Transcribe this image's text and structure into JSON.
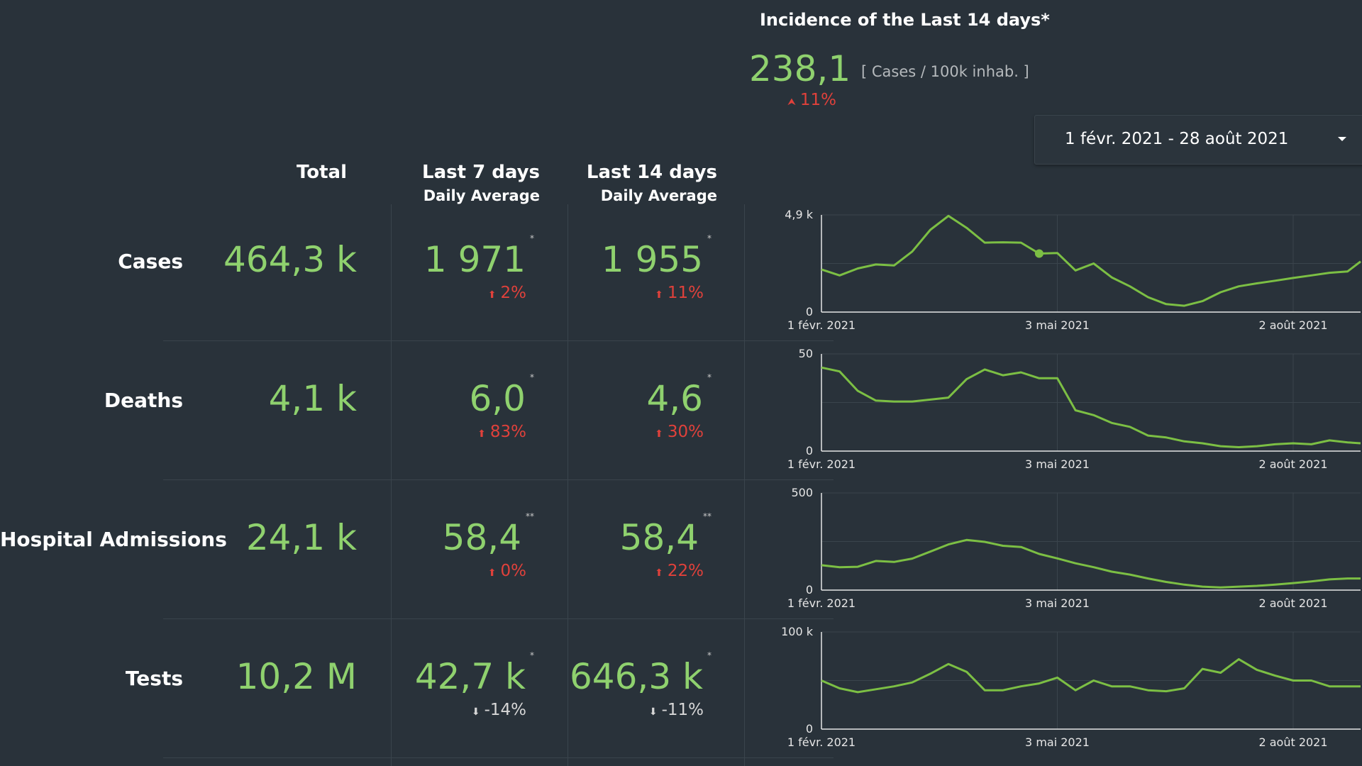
{
  "incidence": {
    "title": "Incidence of the Last 14 days*",
    "value": "238,1",
    "unit": "[ Cases / 100k inhab. ]",
    "change": "11%",
    "change_dir": "up"
  },
  "date_range": {
    "label": "1 févr. 2021 - 28 août 2021"
  },
  "columns": {
    "total": "Total",
    "last7_line1": "Last 7 days",
    "last7_line2": "Daily Average",
    "last14_line1": "Last 14 days",
    "last14_line2": "Daily Average"
  },
  "rows": [
    {
      "label": "Cases",
      "total": "464,3 k",
      "last7": "1 971",
      "last7_mark": "*",
      "last7_change": "2%",
      "last7_dir": "up",
      "last14": "1 955",
      "last14_mark": "*",
      "last14_change": "11%",
      "last14_dir": "up"
    },
    {
      "label": "Deaths",
      "total": "4,1 k",
      "last7": "6,0",
      "last7_mark": "*",
      "last7_change": "83%",
      "last7_dir": "up",
      "last14": "4,6",
      "last14_mark": "*",
      "last14_change": "30%",
      "last14_dir": "up"
    },
    {
      "label": "Hospital Admissions",
      "total": "24,1 k",
      "last7": "58,4",
      "last7_mark": "**",
      "last7_change": "0%",
      "last7_dir": "up",
      "last14": "58,4",
      "last14_mark": "**",
      "last14_change": "22%",
      "last14_dir": "up"
    },
    {
      "label": "Tests",
      "total": "10,2 M",
      "last7": "42,7 k",
      "last7_mark": "*",
      "last7_change": "-14%",
      "last7_dir": "down",
      "last14": "646,3 k",
      "last14_mark": "*",
      "last14_change": "-11%",
      "last14_dir": "down"
    }
  ],
  "colors": {
    "background": "#29323a",
    "value_green": "#8fd16e",
    "up_red": "#e0413b",
    "line_green": "#7cbf44"
  },
  "chart_data": [
    {
      "type": "line",
      "series_name": "Cases",
      "x_ticks": [
        "1 févr. 2021",
        "3 mai 2021",
        "2 août 2021"
      ],
      "y_tick_labels": [
        "4,9 k",
        "0"
      ],
      "ylim": [
        0,
        4900
      ],
      "x": [
        "2021-02-01",
        "2021-02-08",
        "2021-02-15",
        "2021-02-22",
        "2021-03-01",
        "2021-03-08",
        "2021-03-15",
        "2021-03-22",
        "2021-03-29",
        "2021-04-05",
        "2021-04-12",
        "2021-04-19",
        "2021-04-26",
        "2021-05-03",
        "2021-05-10",
        "2021-05-17",
        "2021-05-24",
        "2021-05-31",
        "2021-06-07",
        "2021-06-14",
        "2021-06-21",
        "2021-06-28",
        "2021-07-05",
        "2021-07-12",
        "2021-07-19",
        "2021-07-26",
        "2021-08-02",
        "2021-08-09",
        "2021-08-16",
        "2021-08-23",
        "2021-08-28"
      ],
      "values": [
        2150,
        1850,
        2200,
        2400,
        2350,
        3050,
        4150,
        4850,
        4250,
        3500,
        3520,
        3500,
        2950,
        2980,
        2100,
        2450,
        1750,
        1300,
        750,
        400,
        320,
        550,
        1000,
        1300,
        1450,
        1580,
        1720,
        1850,
        1980,
        2050,
        2550
      ],
      "highlight_index": 12
    },
    {
      "type": "line",
      "series_name": "Deaths",
      "x_ticks": [
        "1 févr. 2021",
        "3 mai 2021",
        "2 août 2021"
      ],
      "y_tick_labels": [
        "50",
        "0"
      ],
      "ylim": [
        0,
        50
      ],
      "x": [
        "2021-02-01",
        "2021-02-08",
        "2021-02-15",
        "2021-02-22",
        "2021-03-01",
        "2021-03-08",
        "2021-03-15",
        "2021-03-22",
        "2021-03-29",
        "2021-04-05",
        "2021-04-12",
        "2021-04-19",
        "2021-04-26",
        "2021-05-03",
        "2021-05-10",
        "2021-05-17",
        "2021-05-24",
        "2021-05-31",
        "2021-06-07",
        "2021-06-14",
        "2021-06-21",
        "2021-06-28",
        "2021-07-05",
        "2021-07-12",
        "2021-07-19",
        "2021-07-26",
        "2021-08-02",
        "2021-08-09",
        "2021-08-16",
        "2021-08-23",
        "2021-08-28"
      ],
      "values": [
        43,
        41,
        31,
        26,
        25.5,
        25.5,
        26.5,
        27.5,
        37,
        42,
        39,
        40.5,
        37.5,
        37.5,
        21,
        18.5,
        14.5,
        12.5,
        8,
        7,
        5,
        4,
        2.5,
        2,
        2.5,
        3.5,
        4,
        3.5,
        5.5,
        4.5,
        4
      ],
      "highlight_index": null
    },
    {
      "type": "line",
      "series_name": "Hospital Admissions",
      "x_ticks": [
        "1 févr. 2021",
        "3 mai 2021",
        "2 août 2021"
      ],
      "y_tick_labels": [
        "500",
        "0"
      ],
      "ylim": [
        0,
        500
      ],
      "x": [
        "2021-02-01",
        "2021-02-08",
        "2021-02-15",
        "2021-02-22",
        "2021-03-01",
        "2021-03-08",
        "2021-03-15",
        "2021-03-22",
        "2021-03-29",
        "2021-04-05",
        "2021-04-12",
        "2021-04-19",
        "2021-04-26",
        "2021-05-03",
        "2021-05-10",
        "2021-05-17",
        "2021-05-24",
        "2021-05-31",
        "2021-06-07",
        "2021-06-14",
        "2021-06-21",
        "2021-06-28",
        "2021-07-05",
        "2021-07-12",
        "2021-07-19",
        "2021-07-26",
        "2021-08-02",
        "2021-08-09",
        "2021-08-16",
        "2021-08-23",
        "2021-08-28"
      ],
      "values": [
        128,
        118,
        120,
        150,
        145,
        162,
        198,
        235,
        258,
        248,
        228,
        222,
        186,
        163,
        138,
        118,
        95,
        80,
        60,
        42,
        28,
        18,
        14,
        18,
        22,
        28,
        36,
        45,
        55,
        60,
        60
      ],
      "highlight_index": null
    },
    {
      "type": "line",
      "series_name": "Tests",
      "x_ticks": [
        "1 févr. 2021",
        "3 mai 2021",
        "2 août 2021"
      ],
      "y_tick_labels": [
        "100 k",
        "0"
      ],
      "ylim": [
        0,
        100000
      ],
      "x": [
        "2021-02-01",
        "2021-02-08",
        "2021-02-15",
        "2021-02-22",
        "2021-03-01",
        "2021-03-08",
        "2021-03-15",
        "2021-03-22",
        "2021-03-29",
        "2021-04-05",
        "2021-04-12",
        "2021-04-19",
        "2021-04-26",
        "2021-05-03",
        "2021-05-10",
        "2021-05-17",
        "2021-05-24",
        "2021-05-31",
        "2021-06-07",
        "2021-06-14",
        "2021-06-21",
        "2021-06-28",
        "2021-07-05",
        "2021-07-12",
        "2021-07-19",
        "2021-07-26",
        "2021-08-02",
        "2021-08-09",
        "2021-08-16",
        "2021-08-23",
        "2021-08-28"
      ],
      "values": [
        50000,
        42000,
        38000,
        41000,
        44000,
        48000,
        57000,
        67000,
        59000,
        40000,
        40000,
        44000,
        47000,
        53000,
        40000,
        50000,
        44000,
        44000,
        40000,
        39000,
        42000,
        62000,
        58000,
        72000,
        61000,
        55000,
        50000,
        50000,
        44000,
        44000,
        44000
      ],
      "highlight_index": null
    }
  ]
}
